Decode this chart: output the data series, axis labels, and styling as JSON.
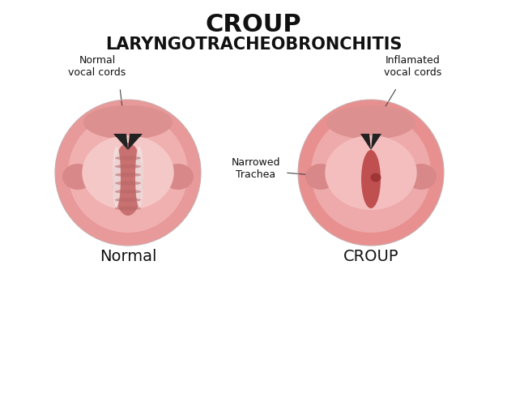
{
  "title_main": "CROUP",
  "title_sub": "LARYNGOTRACHEOBRONCHITIS",
  "label_left": "Normal",
  "label_right": "CROUP",
  "label_normal_cords": "Normal\nvocal cords",
  "label_inflamed_cords": "Inflamated\nvocal cords",
  "label_narrowed": "Narrowed\nTrachea",
  "bg_color": "#ffffff",
  "c1_outer": "#e8999a",
  "c1_mid": "#f0b0b0",
  "c1_inner": "#f5c8c8",
  "c1_throat_dark": "#c97070",
  "c1_white_area": "#f5e8e8",
  "c1_trachea_stripe": "#b86868",
  "c2_outer": "#e89090",
  "c2_mid": "#eeaaaa",
  "c2_inner": "#f5bebe",
  "c2_throat_dark": "#c05050",
  "c2_dot": "#a03535",
  "side_bump_color": "#d88888",
  "top_tissue_color": "#dc9090",
  "vocal_v_color": "#222222",
  "vocal_dot_color": "#222222",
  "line_color": "#444444",
  "title_fontsize": 22,
  "subtitle_fontsize": 15,
  "label_fontsize": 14,
  "annot_fontsize": 9
}
